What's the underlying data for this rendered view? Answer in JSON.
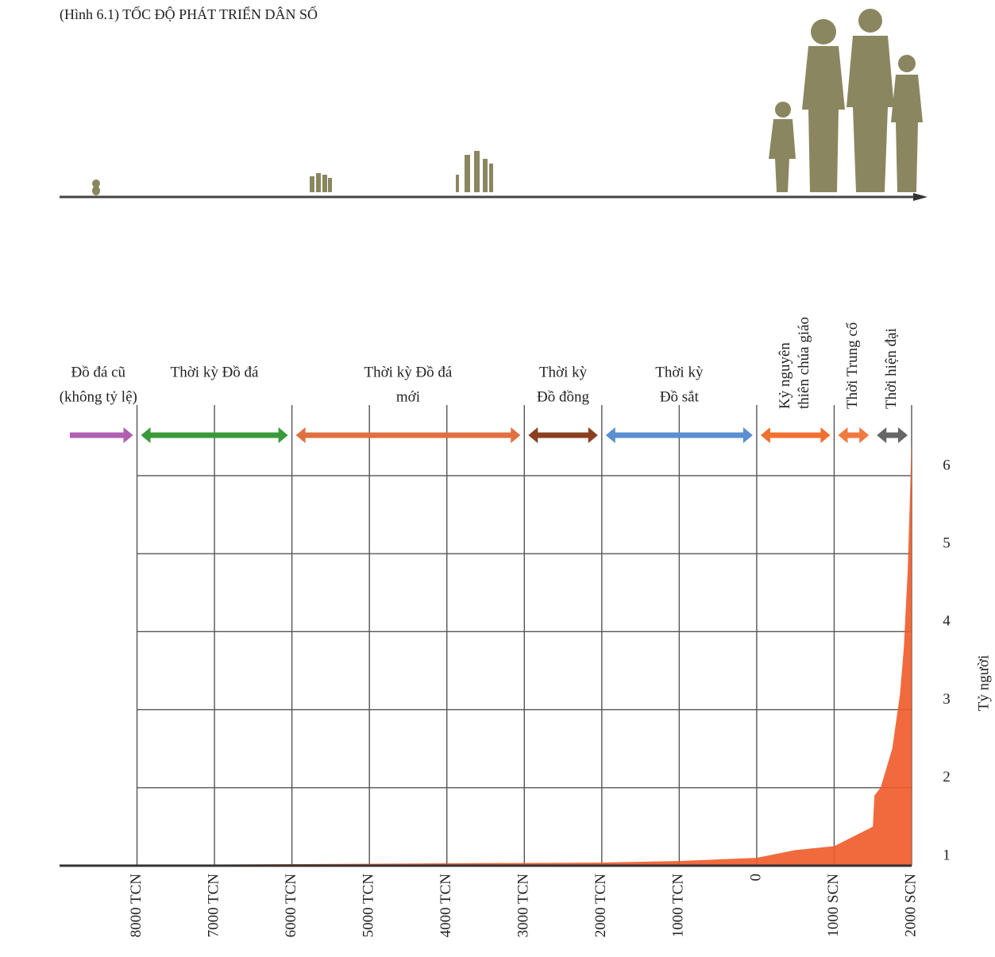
{
  "title": "(Hình 6.1) TỐC ĐỘ PHÁT TRIỂN DÂN SỐ",
  "chart_data": {
    "type": "area",
    "y_label": "Tỷ người",
    "x": [
      -9000,
      -8000,
      -6000,
      -4000,
      -2000,
      -1000,
      0,
      500,
      1000,
      1200,
      1500,
      1520,
      1600,
      1750,
      1850,
      1900,
      1950,
      2000
    ],
    "series": [
      {
        "name": "Dân số",
        "color": "#f05a28",
        "values": [
          1.0,
          1.01,
          1.02,
          1.03,
          1.04,
          1.06,
          1.1,
          1.2,
          1.25,
          1.35,
          1.5,
          1.9,
          2.0,
          2.5,
          3.2,
          3.8,
          4.8,
          6.45
        ]
      }
    ],
    "xlim": [
      -9000,
      2000
    ],
    "ylim": [
      1,
      6.6
    ],
    "xticks": [
      {
        "value": -8000,
        "label": "8000 TCN"
      },
      {
        "value": -7000,
        "label": "7000 TCN"
      },
      {
        "value": -6000,
        "label": "6000 TCN"
      },
      {
        "value": -5000,
        "label": "5000 TCN"
      },
      {
        "value": -4000,
        "label": "4000 TCN"
      },
      {
        "value": -3000,
        "label": "3000 TCN"
      },
      {
        "value": -2000,
        "label": "2000 TCN"
      },
      {
        "value": -1000,
        "label": "1000 TCN"
      },
      0,
      {
        "value": 1000,
        "label": "1000 SCN"
      },
      {
        "value": 2000,
        "label": "2000 SCN"
      }
    ],
    "yticks": [
      1,
      2,
      3,
      4,
      5,
      6
    ],
    "grid": true,
    "periods": [
      {
        "lines": [
          "Đồ đá cũ",
          "(không tỷ lệ)"
        ],
        "start": -9000,
        "end": -8000,
        "color": "#b060b0"
      },
      {
        "lines": [
          "Thời kỳ Đồ đá"
        ],
        "start": -8000,
        "end": -6000,
        "color": "#3a9a3a"
      },
      {
        "lines": [
          "Thời  kỳ  Đồ  đá",
          "mới"
        ],
        "start": -6000,
        "end": -3000,
        "color": "#e07040"
      },
      {
        "lines": [
          "Thời kỳ",
          "Đồ đồng"
        ],
        "start": -3000,
        "end": -2000,
        "color": "#8a4020"
      },
      {
        "lines": [
          "Thời kỳ",
          "Đồ sắt"
        ],
        "start": -2000,
        "end": 0,
        "color": "#5a8fd0"
      },
      {
        "lines": [
          "Kỷ nguyên",
          "thiên chúa giáo"
        ],
        "start": 0,
        "end": 1000,
        "color": "#f07030"
      },
      {
        "lines": [
          "Thời Trung cổ"
        ],
        "start": 1000,
        "end": 1500,
        "color": "#f07a40"
      },
      {
        "lines": [
          "Thời hiện đại"
        ],
        "start": 1500,
        "end": 2000,
        "color": "#666666"
      }
    ]
  }
}
